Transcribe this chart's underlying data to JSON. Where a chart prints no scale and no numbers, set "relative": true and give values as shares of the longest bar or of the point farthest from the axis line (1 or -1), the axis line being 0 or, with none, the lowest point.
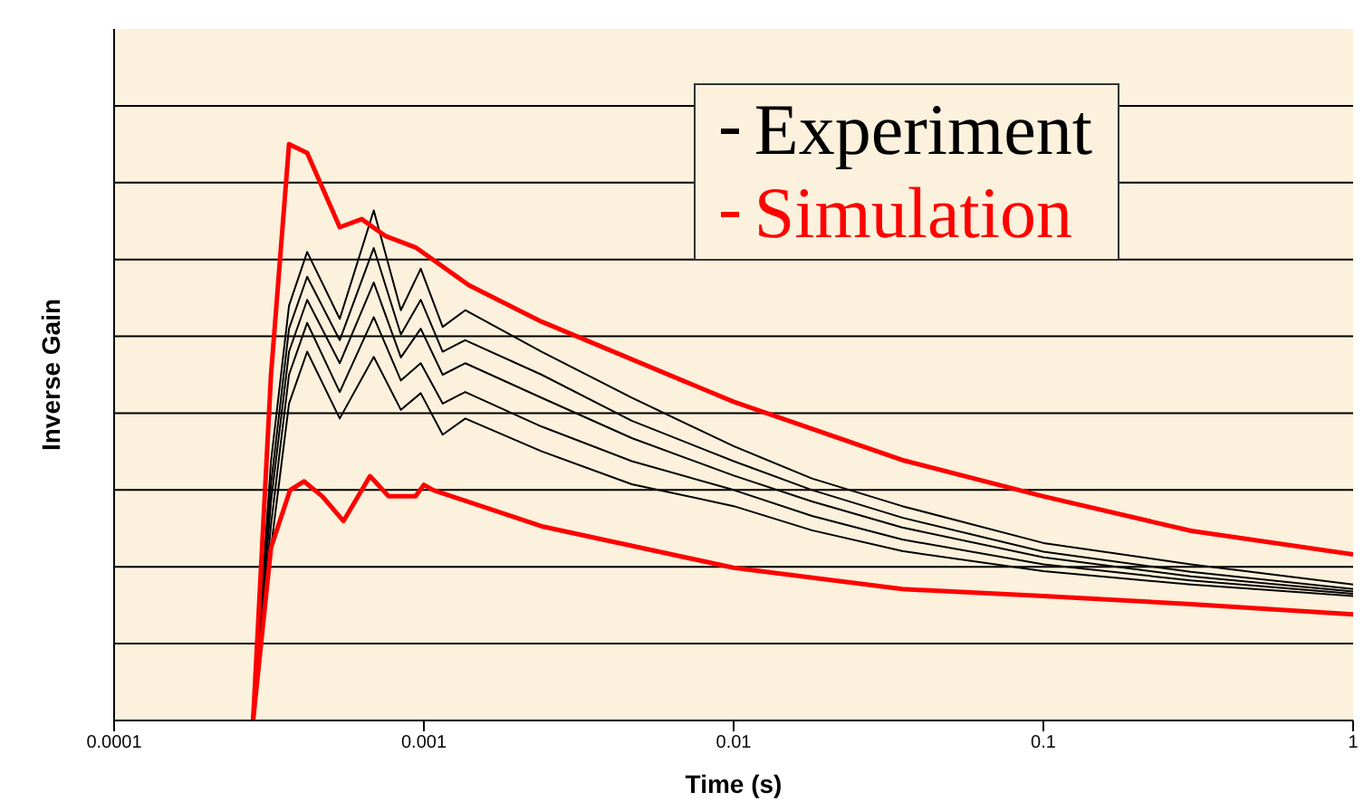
{
  "chart_data": {
    "type": "line",
    "relative": true,
    "xlabel": "Time (s)",
    "ylabel": "Inverse Gain",
    "log": "x",
    "xlim": [
      0.0001,
      1
    ],
    "xticks": [
      0.0001,
      0.001,
      0.01,
      0.1,
      1
    ],
    "grid": "y",
    "legend": "top right",
    "x": [
      0.000281,
      0.000321,
      0.000367,
      0.00042,
      0.000535,
      0.000689,
      0.000843,
      0.000977,
      0.00115,
      0.00136,
      0.0024,
      0.00469,
      0.01,
      0.0179,
      0.035,
      0.1,
      0.299,
      1
    ],
    "series": [
      {
        "name": "Experiment",
        "color": "#000000",
        "values": [
          0,
          0.45,
          0.72,
          0.813,
          0.697,
          0.885,
          0.712,
          0.784,
          0.683,
          0.712,
          0.64,
          0.56,
          0.476,
          0.42,
          0.372,
          0.308,
          0.271,
          0.236
        ]
      },
      {
        "color": "#000000",
        "values": [
          0,
          0.41,
          0.68,
          0.77,
          0.66,
          0.82,
          0.67,
          0.73,
          0.64,
          0.66,
          0.6,
          0.52,
          0.45,
          0.4,
          0.352,
          0.293,
          0.258,
          0.228
        ]
      },
      {
        "color": "#000000",
        "values": [
          0,
          0.38,
          0.64,
          0.73,
          0.62,
          0.76,
          0.63,
          0.68,
          0.6,
          0.62,
          0.56,
          0.49,
          0.425,
          0.38,
          0.335,
          0.283,
          0.25,
          0.224
        ]
      },
      {
        "color": "#000000",
        "values": [
          0,
          0.34,
          0.6,
          0.69,
          0.57,
          0.7,
          0.59,
          0.62,
          0.55,
          0.57,
          0.51,
          0.45,
          0.4,
          0.355,
          0.314,
          0.271,
          0.243,
          0.22
        ]
      },
      {
        "color": "#000000",
        "values": [
          0,
          0.3,
          0.55,
          0.64,
          0.524,
          0.631,
          0.539,
          0.568,
          0.496,
          0.524,
          0.467,
          0.41,
          0.372,
          0.33,
          0.294,
          0.259,
          0.236,
          0.216
        ]
      },
      {
        "name": "Simulation",
        "color": "#ff0000",
        "x": [
          0.000281,
          0.000321,
          0.000367,
          0.00042,
          0.000535,
          0.00063,
          0.00075,
          0.00094,
          0.0014,
          0.0024,
          0.01,
          0.035,
          0.1,
          0.3,
          1
        ],
        "values": [
          0,
          0.6,
          1,
          0.985,
          0.856,
          0.87,
          0.841,
          0.821,
          0.755,
          0.692,
          0.553,
          0.452,
          0.389,
          0.329,
          0.288
        ]
      },
      {
        "color": "#ff0000",
        "x": [
          0.000281,
          0.000321,
          0.00037,
          0.00041,
          0.00047,
          0.00055,
          0.00067,
          0.00077,
          0.00094,
          0.001,
          0.00107,
          0.0024,
          0.01,
          0.035,
          0.1,
          0.3,
          1
        ],
        "values": [
          0,
          0.3,
          0.4,
          0.415,
          0.389,
          0.346,
          0.424,
          0.389,
          0.389,
          0.409,
          0.4,
          0.337,
          0.265,
          0.228,
          0.216,
          0.202,
          0.184
        ]
      }
    ]
  }
}
